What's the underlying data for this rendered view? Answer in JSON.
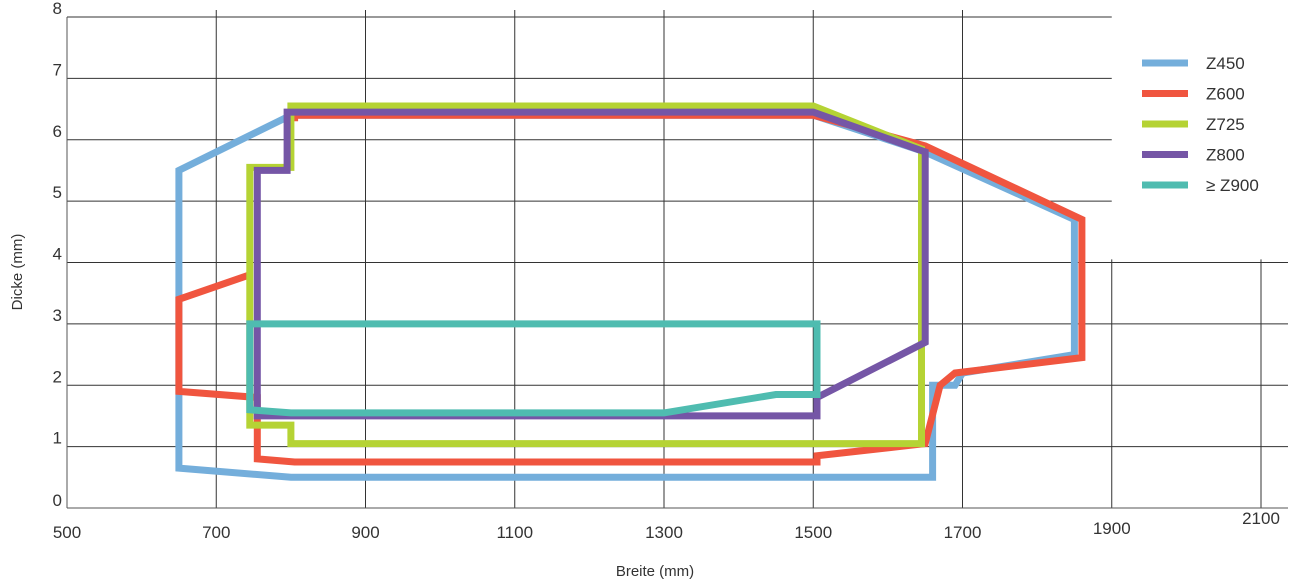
{
  "chart_data": {
    "type": "line",
    "title": "",
    "xlabel": "Breite (mm)",
    "ylabel": "Dicke (mm)",
    "xlim": [
      500,
      2100
    ],
    "ylim": [
      0,
      8
    ],
    "x_ticks": [
      500,
      700,
      900,
      1100,
      1300,
      1500,
      1700,
      1900,
      2100
    ],
    "y_ticks": [
      0,
      1,
      2,
      3,
      4,
      5,
      6,
      7,
      8
    ],
    "grid": true,
    "legend_position": "right",
    "series": [
      {
        "name": "Z450",
        "color": "#74aedb",
        "closed": true,
        "points": [
          [
            650,
            5.5
          ],
          [
            800,
            6.4
          ],
          [
            1500,
            6.4
          ],
          [
            1650,
            5.8
          ],
          [
            1850,
            4.7
          ],
          [
            1850,
            2.5
          ],
          [
            1700,
            2.2
          ],
          [
            1690,
            2.0
          ],
          [
            1660,
            2.0
          ],
          [
            1660,
            0.5
          ],
          [
            800,
            0.5
          ],
          [
            650,
            0.65
          ]
        ]
      },
      {
        "name": "Z600",
        "color": "#f0553f",
        "closed": false,
        "points": [
          [
            745,
            3.8
          ],
          [
            650,
            3.4
          ],
          [
            650,
            1.9
          ],
          [
            755,
            1.8
          ],
          [
            755,
            0.8
          ],
          [
            805,
            0.75
          ],
          [
            1505,
            0.75
          ],
          [
            1505,
            0.85
          ],
          [
            1650,
            1.05
          ],
          [
            1670,
            2.0
          ],
          [
            1690,
            2.2
          ],
          [
            1860,
            2.45
          ],
          [
            1860,
            4.7
          ],
          [
            1650,
            5.9
          ],
          [
            1500,
            6.4
          ],
          [
            805,
            6.4
          ],
          [
            805,
            6.3
          ]
        ]
      },
      {
        "name": "Z725",
        "color": "#b5d334",
        "closed": true,
        "points": [
          [
            745,
            5.55
          ],
          [
            800,
            5.55
          ],
          [
            800,
            6.55
          ],
          [
            1500,
            6.55
          ],
          [
            1645,
            5.85
          ],
          [
            1645,
            1.05
          ],
          [
            800,
            1.05
          ],
          [
            800,
            1.35
          ],
          [
            745,
            1.35
          ]
        ]
      },
      {
        "name": "Z800",
        "color": "#7556a6",
        "closed": true,
        "points": [
          [
            755,
            5.5
          ],
          [
            795,
            5.5
          ],
          [
            795,
            6.45
          ],
          [
            1500,
            6.45
          ],
          [
            1650,
            5.8
          ],
          [
            1650,
            2.7
          ],
          [
            1505,
            1.8
          ],
          [
            1505,
            1.5
          ],
          [
            755,
            1.5
          ]
        ]
      },
      {
        "name": "≥ Z900",
        "color": "#4fbcb0",
        "closed": true,
        "points": [
          [
            745,
            3.0
          ],
          [
            1505,
            3.0
          ],
          [
            1505,
            1.85
          ],
          [
            1450,
            1.85
          ],
          [
            1300,
            1.55
          ],
          [
            800,
            1.55
          ],
          [
            745,
            1.6
          ]
        ]
      }
    ]
  }
}
